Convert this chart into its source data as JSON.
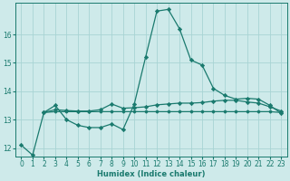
{
  "xlabel": "Humidex (Indice chaleur)",
  "background_color": "#ceeaea",
  "grid_color": "#a8d4d4",
  "line_color": "#1a7a6e",
  "xlim": [
    -0.5,
    23.5
  ],
  "ylim": [
    11.7,
    17.1
  ],
  "xticks": [
    0,
    1,
    2,
    3,
    4,
    5,
    6,
    7,
    8,
    9,
    10,
    11,
    12,
    13,
    14,
    15,
    16,
    17,
    18,
    19,
    20,
    21,
    22,
    23
  ],
  "yticks": [
    12,
    13,
    14,
    15,
    16
  ],
  "line1_x": [
    0,
    1,
    2,
    3,
    4,
    5,
    6,
    7,
    8,
    9,
    10,
    11,
    12,
    13,
    14,
    15,
    16,
    17,
    18,
    19,
    20,
    21,
    22,
    23
  ],
  "line1_y": [
    12.1,
    11.75,
    13.25,
    13.5,
    13.0,
    12.8,
    12.72,
    12.72,
    12.85,
    12.65,
    13.55,
    15.2,
    16.82,
    16.88,
    16.2,
    15.1,
    14.92,
    14.1,
    13.85,
    13.72,
    13.75,
    13.72,
    13.5,
    13.22
  ],
  "line2_x": [
    2,
    3,
    4,
    5,
    6,
    7,
    8,
    9,
    10,
    11,
    12,
    13,
    14,
    15,
    16,
    17,
    18,
    19,
    20,
    21,
    22,
    23
  ],
  "line2_y": [
    13.25,
    13.35,
    13.32,
    13.3,
    13.3,
    13.35,
    13.55,
    13.4,
    13.42,
    13.45,
    13.52,
    13.55,
    13.58,
    13.58,
    13.6,
    13.65,
    13.68,
    13.68,
    13.62,
    13.58,
    13.45,
    13.3
  ],
  "line3_x": [
    2,
    3,
    4,
    5,
    6,
    7,
    8,
    9,
    10,
    11,
    12,
    13,
    14,
    15,
    16,
    17,
    18,
    19,
    20,
    21,
    22,
    23
  ],
  "line3_y": [
    13.25,
    13.28,
    13.28,
    13.28,
    13.28,
    13.28,
    13.28,
    13.28,
    13.28,
    13.28,
    13.28,
    13.28,
    13.28,
    13.28,
    13.28,
    13.28,
    13.28,
    13.28,
    13.28,
    13.28,
    13.28,
    13.25
  ]
}
